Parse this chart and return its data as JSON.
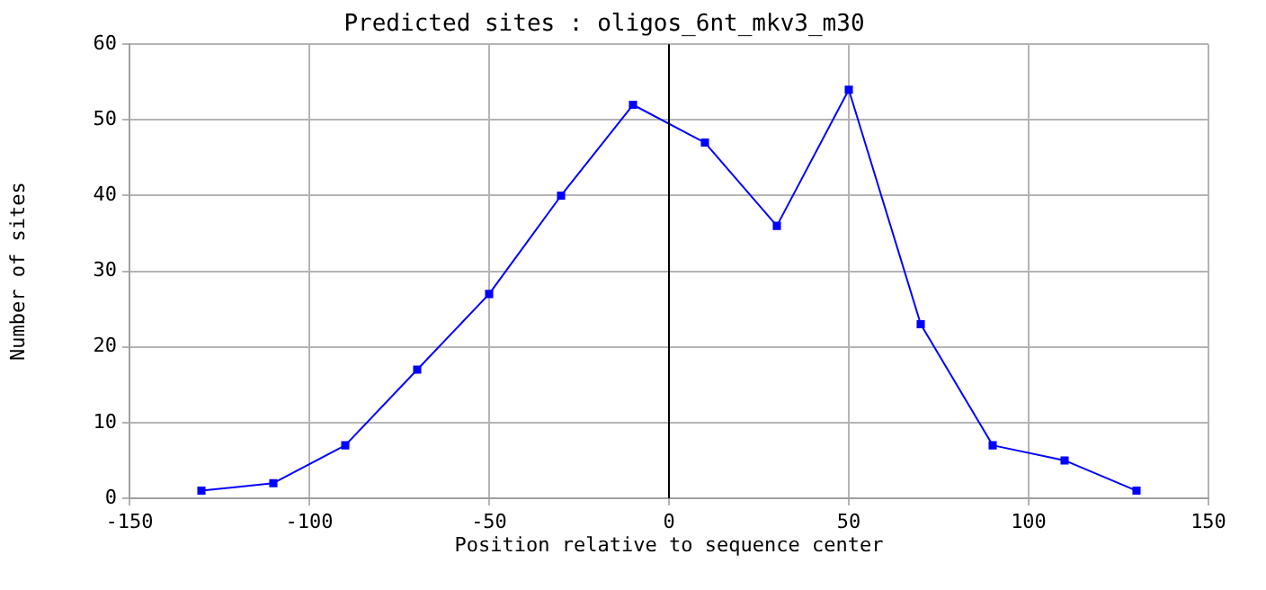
{
  "chart_data": {
    "type": "line",
    "title": "Predicted sites : oligos_6nt_mkv3_m30",
    "xlabel": "Position relative to sequence center",
    "ylabel": "Number of sites",
    "x": [
      -130,
      -110,
      -90,
      -70,
      -50,
      -30,
      -10,
      10,
      30,
      50,
      70,
      90,
      110,
      130
    ],
    "series": [
      {
        "color": "#0000ff",
        "values": [
          1,
          2,
          7,
          17,
          27,
          40,
          52,
          47,
          36,
          54,
          23,
          7,
          5,
          1
        ]
      }
    ],
    "xlim": [
      -150,
      150
    ],
    "xticks": [
      -150,
      -100,
      -50,
      0,
      50,
      100,
      150
    ],
    "ylim": [
      0,
      60
    ],
    "yticks": [
      0,
      10,
      20,
      30,
      40,
      50,
      60
    ],
    "ref_lines": [
      {
        "axis": "x",
        "value": 0,
        "color": "#000000"
      }
    ],
    "grid": true,
    "legend": false,
    "marker": "square",
    "line_style": "solid"
  }
}
